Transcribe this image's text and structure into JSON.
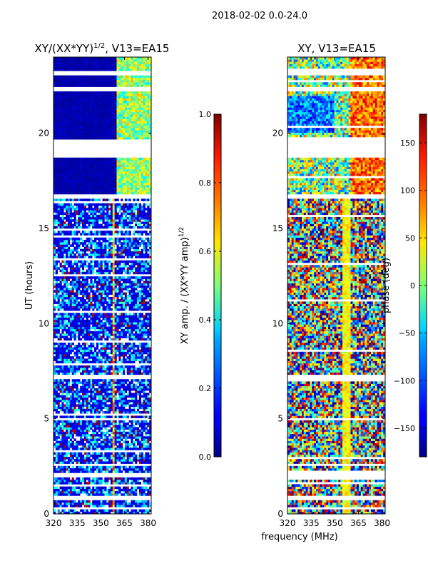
{
  "figure_title": "2018-02-02 0.0-24.0",
  "shared_xlabel": "frequency (MHz)",
  "chart_data": [
    {
      "type": "heatmap",
      "title_main": "XY/(XX*YY)",
      "title_sup": "1/2",
      "title_tail": ", V13=EA15",
      "xlabel": "",
      "ylabel": "UT (hours)",
      "xlim": [
        320,
        382
      ],
      "ylim": [
        0,
        24
      ],
      "xticks": [
        320,
        335,
        350,
        365,
        380
      ],
      "yticks": [
        0,
        5,
        10,
        15,
        20
      ],
      "colormap": "jet",
      "value_range": [
        0,
        1
      ],
      "bright_band_mhz": [
        357,
        359
      ],
      "high_freq_band_mhz": [
        360,
        382
      ],
      "gap_ut_ranges": [
        [
          0.25,
          0.4
        ],
        [
          0.75,
          0.9
        ],
        [
          1.9,
          2.1
        ],
        [
          4.9,
          5.0
        ],
        [
          7.1,
          7.3
        ],
        [
          16.6,
          16.8
        ],
        [
          18.7,
          19.7
        ],
        [
          22.2,
          22.4
        ],
        [
          23.0,
          23.3
        ]
      ]
    },
    {
      "type": "heatmap",
      "title_main": "XY, V13=EA15",
      "xlabel": "frequency (MHz)",
      "ylabel": "",
      "xlim": [
        320,
        382
      ],
      "ylim": [
        0,
        24
      ],
      "xticks": [
        320,
        335,
        350,
        365,
        380
      ],
      "yticks": [
        0,
        5,
        10,
        15,
        20
      ],
      "colormap": "jet",
      "value_range": [
        -180,
        180
      ],
      "gap_ut_ranges": [
        [
          0.25,
          0.4
        ],
        [
          0.75,
          0.9
        ],
        [
          1.9,
          2.1
        ],
        [
          4.9,
          5.0
        ],
        [
          7.1,
          7.3
        ],
        [
          16.6,
          16.8
        ],
        [
          18.7,
          19.7
        ],
        [
          22.2,
          22.4
        ],
        [
          23.0,
          23.3
        ]
      ]
    }
  ],
  "colorbars": [
    {
      "label_main": "XY amp. / (XX*YY amp)",
      "label_sup": "1/2",
      "min": 0.0,
      "max": 1.0,
      "ticks": [
        "0.0",
        "0.2",
        "0.4",
        "0.6",
        "0.8",
        "1.0"
      ],
      "tick_values": [
        0.0,
        0.2,
        0.4,
        0.6,
        0.8,
        1.0
      ]
    },
    {
      "label": "phase (deg)",
      "min": -180,
      "max": 180,
      "ticks": [
        "−150",
        "−100",
        "−50",
        "0",
        "50",
        "100",
        "150"
      ],
      "tick_values": [
        -150,
        -100,
        -50,
        0,
        50,
        100,
        150
      ]
    }
  ]
}
